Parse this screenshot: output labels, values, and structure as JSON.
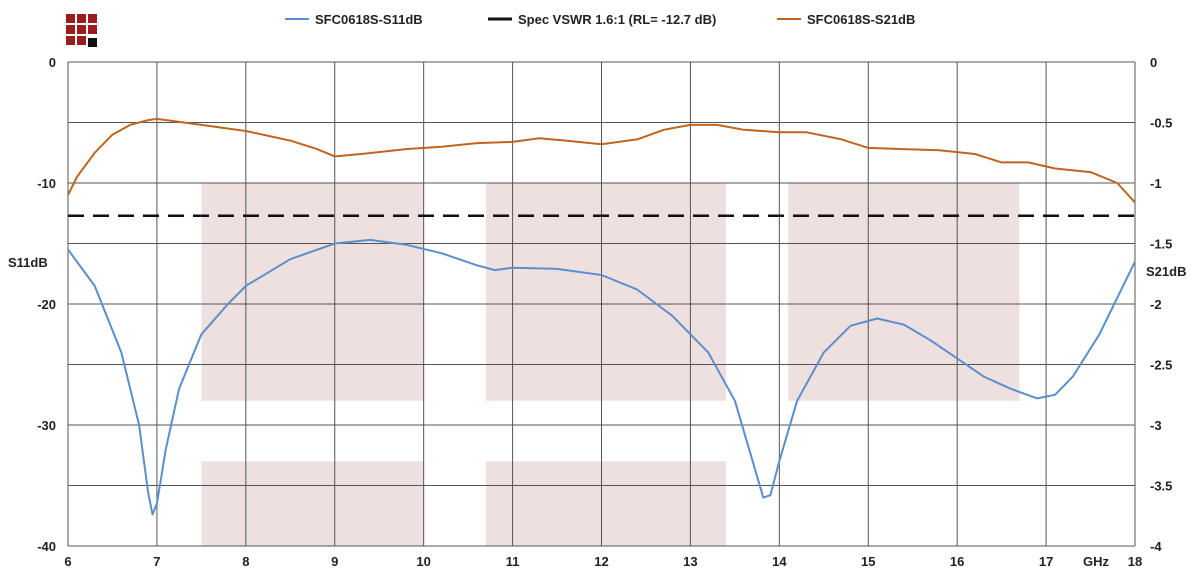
{
  "chart_data": {
    "type": "line",
    "title": "",
    "x_unit": "GHz",
    "xlim": [
      6,
      18
    ],
    "x_ticks": [
      6,
      7,
      8,
      9,
      10,
      11,
      12,
      13,
      14,
      15,
      16,
      17,
      18
    ],
    "y_left": {
      "label": "S11dB",
      "ylim": [
        -40,
        0
      ],
      "ticks": [
        0,
        -10,
        -20,
        -30,
        -40
      ]
    },
    "y_right": {
      "label": "S21dB",
      "ylim": [
        -4,
        0
      ],
      "ticks": [
        "0",
        "-0.5",
        "-1",
        "-1.5",
        "-2",
        "-2.5",
        "-3",
        "-3.5",
        "-4"
      ]
    },
    "grid": true,
    "legend_position": "top",
    "series": [
      {
        "name": "SFC0618S-S11dB",
        "axis": "left",
        "color": "#5b8fcc",
        "points": [
          [
            6.0,
            -15.5
          ],
          [
            6.3,
            -18.5
          ],
          [
            6.6,
            -24
          ],
          [
            6.8,
            -30
          ],
          [
            6.9,
            -35.5
          ],
          [
            6.95,
            -37.4
          ],
          [
            7.0,
            -36.5
          ],
          [
            7.1,
            -32
          ],
          [
            7.25,
            -27
          ],
          [
            7.5,
            -22.5
          ],
          [
            7.8,
            -20
          ],
          [
            8.0,
            -18.5
          ],
          [
            8.5,
            -16.3
          ],
          [
            9.0,
            -15
          ],
          [
            9.4,
            -14.7
          ],
          [
            9.8,
            -15.1
          ],
          [
            10.2,
            -15.8
          ],
          [
            10.6,
            -16.8
          ],
          [
            10.8,
            -17.2
          ],
          [
            11.0,
            -17.0
          ],
          [
            11.5,
            -17.1
          ],
          [
            12.0,
            -17.6
          ],
          [
            12.4,
            -18.8
          ],
          [
            12.8,
            -21
          ],
          [
            13.2,
            -24
          ],
          [
            13.5,
            -28
          ],
          [
            13.7,
            -33
          ],
          [
            13.82,
            -36
          ],
          [
            13.9,
            -35.8
          ],
          [
            14.0,
            -33
          ],
          [
            14.2,
            -28
          ],
          [
            14.5,
            -24
          ],
          [
            14.8,
            -21.8
          ],
          [
            15.1,
            -21.2
          ],
          [
            15.4,
            -21.7
          ],
          [
            15.7,
            -23
          ],
          [
            16.0,
            -24.5
          ],
          [
            16.3,
            -26
          ],
          [
            16.6,
            -27
          ],
          [
            16.9,
            -27.8
          ],
          [
            17.1,
            -27.5
          ],
          [
            17.3,
            -26
          ],
          [
            17.6,
            -22.5
          ],
          [
            18.0,
            -16.5
          ]
        ]
      },
      {
        "name": "Spec VSWR 1.6:1 (RL= -12.7 dB)",
        "axis": "left",
        "color": "#111111",
        "dashed": true,
        "points": [
          [
            6.0,
            -12.7
          ],
          [
            18.0,
            -12.7
          ]
        ]
      },
      {
        "name": "SFC0618S-S21dB",
        "axis": "right",
        "color": "#c0651e",
        "points": [
          [
            6.0,
            -1.1
          ],
          [
            6.1,
            -0.95
          ],
          [
            6.3,
            -0.75
          ],
          [
            6.5,
            -0.6
          ],
          [
            6.7,
            -0.52
          ],
          [
            6.9,
            -0.48
          ],
          [
            7.0,
            -0.47
          ],
          [
            7.2,
            -0.49
          ],
          [
            7.5,
            -0.52
          ],
          [
            8.0,
            -0.57
          ],
          [
            8.5,
            -0.65
          ],
          [
            8.8,
            -0.72
          ],
          [
            9.0,
            -0.78
          ],
          [
            9.3,
            -0.76
          ],
          [
            9.8,
            -0.72
          ],
          [
            10.2,
            -0.7
          ],
          [
            10.6,
            -0.67
          ],
          [
            11.0,
            -0.66
          ],
          [
            11.3,
            -0.63
          ],
          [
            11.6,
            -0.65
          ],
          [
            12.0,
            -0.68
          ],
          [
            12.4,
            -0.64
          ],
          [
            12.7,
            -0.56
          ],
          [
            13.0,
            -0.52
          ],
          [
            13.3,
            -0.52
          ],
          [
            13.6,
            -0.56
          ],
          [
            14.0,
            -0.58
          ],
          [
            14.3,
            -0.58
          ],
          [
            14.7,
            -0.64
          ],
          [
            15.0,
            -0.71
          ],
          [
            15.4,
            -0.72
          ],
          [
            15.8,
            -0.73
          ],
          [
            16.2,
            -0.76
          ],
          [
            16.5,
            -0.83
          ],
          [
            16.8,
            -0.83
          ],
          [
            17.1,
            -0.88
          ],
          [
            17.5,
            -0.91
          ],
          [
            17.8,
            -1.0
          ],
          [
            18.0,
            -1.16
          ]
        ]
      }
    ],
    "shaded_regions": [
      {
        "x": [
          7.5,
          10.0
        ],
        "y": [
          -28,
          -10
        ]
      },
      {
        "x": [
          7.5,
          10.0
        ],
        "y": [
          -40,
          -33
        ]
      },
      {
        "x": [
          10.7,
          13.4
        ],
        "y": [
          -28,
          -10
        ]
      },
      {
        "x": [
          10.7,
          13.4
        ],
        "y": [
          -40,
          -33
        ]
      },
      {
        "x": [
          14.1,
          16.7
        ],
        "y": [
          -28,
          -10
        ]
      }
    ],
    "logo_icon": "pixel-grid-logo"
  }
}
